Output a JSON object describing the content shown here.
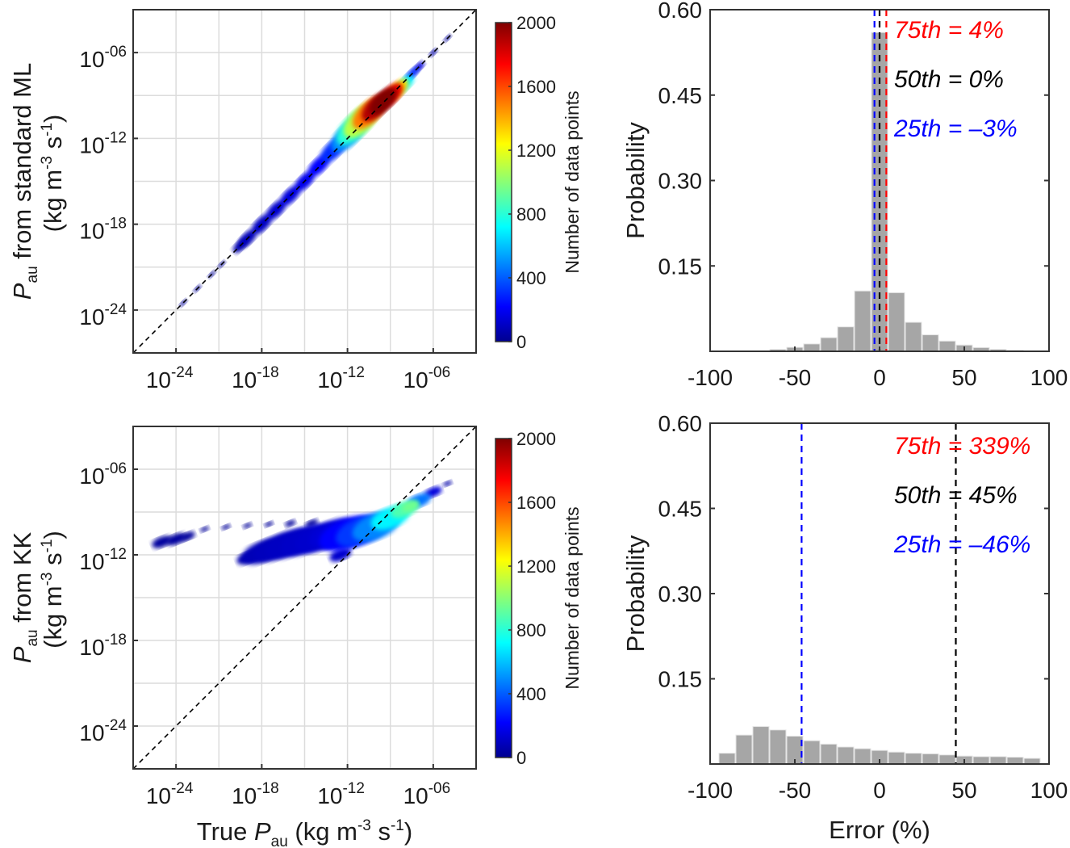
{
  "chart_data": [
    {
      "type": "scatter",
      "panel": "top-left",
      "xlabel": {
        "prefix": "True ",
        "var": "P",
        "sub": "au",
        "unit_open": " (kg m",
        "exp1": "-3",
        "mid": " s",
        "exp2": "-1",
        "unit_close": ")"
      },
      "ylabel": {
        "var": "P",
        "sub": "au",
        "rest": " from standard ML",
        "unit_open": "(kg m",
        "exp1": "-3",
        "mid": " s",
        "exp2": "-1",
        "unit_close": ")"
      },
      "x_scale": "log",
      "y_scale": "log",
      "xlim_log10": [
        -27,
        -3
      ],
      "ylim_log10": [
        -27,
        -3
      ],
      "tick_base": "10",
      "x_tick_exponents": [
        "-24",
        "-18",
        "-12",
        "-06"
      ],
      "y_tick_exponents": [
        "-24",
        "-18",
        "-12",
        "-06"
      ],
      "tick_values_log10": [
        -24,
        -18,
        -12,
        -6
      ],
      "grid_log10": [
        -24,
        -21,
        -18,
        -15,
        -12,
        -9,
        -6
      ],
      "grid": true,
      "reference_line": "1:1 dashed",
      "colorbar": {
        "label": "Number of data points",
        "min": 0,
        "max": 2000,
        "ticks": [
          "0",
          "400",
          "800",
          "1200",
          "1600",
          "2000"
        ],
        "colormap": "jet"
      },
      "density_points_log10": [
        [
          -23.5,
          -23.5,
          20,
          0.15
        ],
        [
          -22.5,
          -22.5,
          20,
          0.15
        ],
        [
          -21.5,
          -21.5,
          20,
          0.15
        ],
        [
          -20.8,
          -20.8,
          25,
          0.15
        ],
        [
          -19.5,
          -19.5,
          60,
          0.4
        ],
        [
          -19,
          -19,
          80,
          0.5
        ],
        [
          -18,
          -18,
          100,
          0.55
        ],
        [
          -17,
          -17,
          120,
          0.55
        ],
        [
          -16,
          -16,
          150,
          0.55
        ],
        [
          -15,
          -15,
          180,
          0.55
        ],
        [
          -14,
          -13.9,
          220,
          0.6
        ],
        [
          -13,
          -12.8,
          300,
          0.7
        ],
        [
          -12,
          -11.8,
          500,
          0.9
        ],
        [
          -11.5,
          -11.2,
          800,
          1.0
        ],
        [
          -11,
          -10.7,
          1100,
          1.0
        ],
        [
          -10.5,
          -10.2,
          1500,
          0.9
        ],
        [
          -10,
          -9.8,
          1900,
          0.8
        ],
        [
          -9.5,
          -9.4,
          2000,
          0.75
        ],
        [
          -9,
          -9,
          1800,
          0.7
        ],
        [
          -8.5,
          -8.6,
          1300,
          0.6
        ],
        [
          -8,
          -8.2,
          700,
          0.5
        ],
        [
          -7.5,
          -7.5,
          300,
          0.35
        ],
        [
          -7,
          -7,
          150,
          0.3
        ],
        [
          -6,
          -6,
          60,
          0.2
        ],
        [
          -5,
          -5,
          30,
          0.15
        ]
      ]
    },
    {
      "type": "scatter",
      "panel": "bottom-left",
      "xlabel": {
        "prefix": "True ",
        "var": "P",
        "sub": "au",
        "unit_open": " (kg m",
        "exp1": "-3",
        "mid": " s",
        "exp2": "-1",
        "unit_close": ")"
      },
      "ylabel": {
        "var": "P",
        "sub": "au",
        "rest": " from KK",
        "unit_open": "(kg m",
        "exp1": "-3",
        "mid": " s",
        "exp2": "-1",
        "unit_close": ")"
      },
      "x_scale": "log",
      "y_scale": "log",
      "xlim_log10": [
        -27,
        -3
      ],
      "ylim_log10": [
        -27,
        -3
      ],
      "tick_base": "10",
      "x_tick_exponents": [
        "-24",
        "-18",
        "-12",
        "-06"
      ],
      "y_tick_exponents": [
        "-24",
        "-18",
        "-12",
        "-06"
      ],
      "tick_values_log10": [
        -24,
        -18,
        -12,
        -6
      ],
      "grid_log10": [
        -24,
        -21,
        -18,
        -15,
        -12,
        -9,
        -6
      ],
      "grid": true,
      "reference_line": "1:1 dashed",
      "colorbar": {
        "label": "Number of data points",
        "min": 0,
        "max": 2000,
        "ticks": [
          "0",
          "400",
          "800",
          "1200",
          "1600",
          "2000"
        ],
        "colormap": "jet"
      },
      "density_points_log10": [
        [
          -25,
          -11.1,
          30,
          0.45
        ],
        [
          -24,
          -10.9,
          30,
          0.45
        ],
        [
          -23.2,
          -10.7,
          25,
          0.35
        ],
        [
          -22,
          -10.2,
          20,
          0.2
        ],
        [
          -20.5,
          -10.05,
          20,
          0.2
        ],
        [
          -19,
          -9.95,
          20,
          0.2
        ],
        [
          -17.5,
          -9.85,
          20,
          0.2
        ],
        [
          -16,
          -9.8,
          25,
          0.25
        ],
        [
          -14.5,
          -9.8,
          30,
          0.3
        ],
        [
          -19,
          -12.2,
          60,
          0.5
        ],
        [
          -18,
          -11.8,
          80,
          0.9
        ],
        [
          -17,
          -11.5,
          90,
          1.0
        ],
        [
          -16,
          -11.2,
          100,
          1.1
        ],
        [
          -15,
          -11,
          110,
          1.1
        ],
        [
          -14,
          -10.8,
          120,
          1.1
        ],
        [
          -13,
          -10.5,
          140,
          1.1
        ],
        [
          -12.5,
          -12,
          120,
          0.5
        ],
        [
          -12,
          -10.5,
          220,
          1.3
        ],
        [
          -11,
          -10.3,
          330,
          1.2
        ],
        [
          -10,
          -10,
          480,
          1.1
        ],
        [
          -9,
          -9.4,
          700,
          0.9
        ],
        [
          -8,
          -8.8,
          880,
          0.65
        ],
        [
          -7.6,
          -8.6,
          950,
          0.4
        ],
        [
          -7,
          -8.2,
          450,
          0.55
        ],
        [
          -6,
          -7.6,
          150,
          0.4
        ],
        [
          -5,
          -7,
          50,
          0.2
        ]
      ]
    },
    {
      "type": "bar",
      "panel": "top-right",
      "xlabel": "",
      "ylabel": "Probability",
      "xlim": [
        -100,
        100
      ],
      "ylim": [
        0,
        0.6
      ],
      "x_ticks": [
        "-100",
        "-50",
        "0",
        "50",
        "100"
      ],
      "y_ticks": [
        "0.15",
        "0.30",
        "0.45",
        "0.60"
      ],
      "bin_width": 10,
      "bin_centers": [
        -90,
        -80,
        -70,
        -60,
        -50,
        -40,
        -30,
        -20,
        -10,
        0,
        10,
        20,
        30,
        40,
        50,
        60,
        70,
        80,
        90
      ],
      "values": [
        0,
        0,
        0,
        0.0034,
        0.007,
        0.013,
        0.024,
        0.043,
        0.106,
        0.56,
        0.103,
        0.051,
        0.029,
        0.018,
        0.011,
        0.0066,
        0.0035,
        0.002,
        0
      ],
      "bar_color": "#a6a6a6",
      "percentiles": [
        {
          "label": "75th = 4%",
          "value": 4,
          "color": "#ff0000"
        },
        {
          "label": "50th = 0%",
          "value": 0,
          "color": "#000000"
        },
        {
          "label": "25th = –3%",
          "value": -3,
          "color": "#0000ff"
        }
      ]
    },
    {
      "type": "bar",
      "panel": "bottom-right",
      "xlabel": "Error (%)",
      "ylabel": "Probability",
      "xlim": [
        -100,
        100
      ],
      "ylim": [
        0,
        0.6
      ],
      "x_ticks": [
        "-100",
        "-50",
        "0",
        "50",
        "100"
      ],
      "y_ticks": [
        "0.15",
        "0.30",
        "0.45",
        "0.60"
      ],
      "bin_width": 10,
      "bin_centers": [
        -90,
        -80,
        -70,
        -60,
        -50,
        -40,
        -30,
        -20,
        -10,
        0,
        10,
        20,
        30,
        40,
        50,
        60,
        70,
        80,
        90
      ],
      "values": [
        0.019,
        0.051,
        0.066,
        0.06,
        0.049,
        0.041,
        0.035,
        0.03,
        0.027,
        0.024,
        0.021,
        0.019,
        0.018,
        0.016,
        0.014,
        0.013,
        0.013,
        0.012,
        0.01
      ],
      "bar_color": "#a6a6a6",
      "percentiles": [
        {
          "label": "75th = 339%",
          "value": 339,
          "color": "#ff0000"
        },
        {
          "label": "50th = 45%",
          "value": 45,
          "color": "#000000"
        },
        {
          "label": "25th = –46%",
          "value": -46,
          "color": "#0000ff"
        }
      ]
    }
  ]
}
